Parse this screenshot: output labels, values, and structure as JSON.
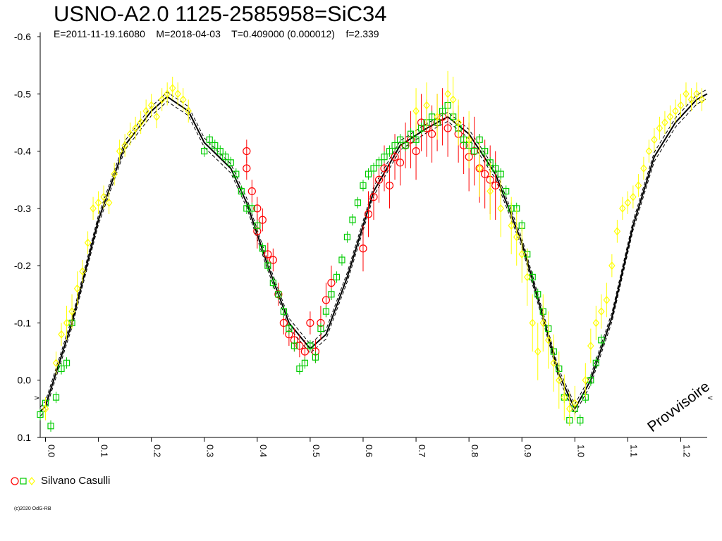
{
  "chart_data": {
    "type": "scatter",
    "title": "USNO-A2.0 1125-2585958=SiC34",
    "subtitle": "E=2011-11-19.16080    M=2018-04-03    T=0.409000 (0.000012)    f=2.339",
    "watermark": "Provvisoire",
    "copyright": "(c)2020 OdG-RB",
    "ylim": [
      -0.6,
      0.1
    ],
    "y_reversed": true,
    "xlim": [
      -0.01,
      1.25
    ],
    "y_ticks": [
      -0.6,
      -0.5,
      -0.4,
      -0.3,
      -0.2,
      -0.1,
      0.0,
      0.1
    ],
    "y_tick_labels": [
      "-0.6",
      "-0.5",
      "-0.4",
      "-0.3",
      "-0.2",
      "-0.1",
      "0.0",
      "0.1"
    ],
    "x_ticks": [
      0.0,
      0.1,
      0.2,
      0.3,
      0.4,
      0.5,
      0.6,
      0.7,
      0.8,
      0.9,
      1.0,
      1.1,
      1.2
    ],
    "x_tick_labels": [
      "0.0",
      "0.1",
      "0.2",
      "0.3",
      "0.4",
      "0.5",
      "0.6",
      "0.7",
      "0.8",
      "0.9",
      "1.0",
      "1.1",
      "1.2"
    ],
    "grid": false,
    "legend": {
      "placement": "bottom-left",
      "label": "Silvano Casulli"
    },
    "fit_curve": {
      "x": [
        -0.01,
        0.0,
        0.05,
        0.1,
        0.15,
        0.2,
        0.23,
        0.27,
        0.3,
        0.35,
        0.38,
        0.42,
        0.46,
        0.5,
        0.53,
        0.57,
        0.62,
        0.67,
        0.72,
        0.76,
        0.8,
        0.85,
        0.9,
        0.94,
        0.97,
        1.0,
        1.03,
        1.07,
        1.11,
        1.15,
        1.19,
        1.23,
        1.25
      ],
      "y": [
        0.055,
        0.045,
        -0.1,
        -0.28,
        -0.41,
        -0.47,
        -0.495,
        -0.47,
        -0.415,
        -0.37,
        -0.31,
        -0.2,
        -0.1,
        -0.055,
        -0.08,
        -0.18,
        -0.33,
        -0.41,
        -0.44,
        -0.46,
        -0.43,
        -0.36,
        -0.24,
        -0.11,
        -0.01,
        0.05,
        0.0,
        -0.11,
        -0.27,
        -0.39,
        -0.45,
        -0.49,
        -0.5
      ],
      "color": "#000000"
    },
    "series": [
      {
        "name": "",
        "marker": "circle",
        "color": "#ff0000",
        "x": [
          0.38,
          0.38,
          0.39,
          0.4,
          0.4,
          0.41,
          0.42,
          0.43,
          0.44,
          0.45,
          0.46,
          0.47,
          0.48,
          0.49,
          0.5,
          0.51,
          0.52,
          0.53,
          0.54,
          0.6,
          0.61,
          0.62,
          0.63,
          0.64,
          0.65,
          0.66,
          0.67,
          0.68,
          0.69,
          0.7,
          0.71,
          0.72,
          0.73,
          0.74,
          0.75,
          0.76,
          0.78,
          0.79,
          0.8,
          0.81,
          0.82,
          0.83,
          0.84,
          0.85
        ],
        "y": [
          -0.4,
          -0.37,
          -0.33,
          -0.3,
          -0.26,
          -0.28,
          -0.22,
          -0.21,
          -0.15,
          -0.1,
          -0.08,
          -0.07,
          -0.06,
          -0.05,
          -0.1,
          -0.05,
          -0.1,
          -0.14,
          -0.17,
          -0.23,
          -0.29,
          -0.32,
          -0.35,
          -0.37,
          -0.34,
          -0.39,
          -0.38,
          -0.41,
          -0.42,
          -0.4,
          -0.45,
          -0.44,
          -0.43,
          -0.45,
          -0.46,
          -0.44,
          -0.43,
          -0.41,
          -0.39,
          -0.4,
          -0.37,
          -0.36,
          -0.35,
          -0.34
        ],
        "err": [
          0.02,
          0.02,
          0.02,
          0.02,
          0.03,
          0.02,
          0.02,
          0.02,
          0.02,
          0.02,
          0.02,
          0.02,
          0.02,
          0.02,
          0.02,
          0.02,
          0.03,
          0.03,
          0.03,
          0.04,
          0.04,
          0.04,
          0.04,
          0.04,
          0.04,
          0.04,
          0.04,
          0.04,
          0.05,
          0.05,
          0.05,
          0.05,
          0.05,
          0.05,
          0.05,
          0.05,
          0.05,
          0.05,
          0.06,
          0.06,
          0.06,
          0.06,
          0.06,
          0.06
        ]
      },
      {
        "name": "",
        "marker": "square",
        "color": "#00cc00",
        "x": [
          -0.01,
          0.0,
          0.01,
          0.02,
          0.03,
          0.04,
          0.05,
          0.3,
          0.31,
          0.32,
          0.33,
          0.34,
          0.35,
          0.36,
          0.37,
          0.38,
          0.39,
          0.4,
          0.41,
          0.42,
          0.43,
          0.44,
          0.45,
          0.46,
          0.47,
          0.48,
          0.49,
          0.5,
          0.51,
          0.52,
          0.53,
          0.54,
          0.55,
          0.56,
          0.57,
          0.58,
          0.59,
          0.6,
          0.61,
          0.62,
          0.63,
          0.64,
          0.65,
          0.66,
          0.67,
          0.68,
          0.69,
          0.7,
          0.71,
          0.72,
          0.73,
          0.74,
          0.75,
          0.76,
          0.77,
          0.78,
          0.79,
          0.8,
          0.81,
          0.82,
          0.83,
          0.84,
          0.85,
          0.86,
          0.87,
          0.88,
          0.89,
          0.9,
          0.91,
          0.92,
          0.93,
          0.94,
          0.95,
          0.96,
          0.97,
          0.98,
          0.99,
          1.0,
          1.01,
          1.02,
          1.03,
          1.04,
          1.05
        ],
        "y": [
          0.06,
          0.04,
          0.08,
          0.03,
          -0.02,
          -0.03,
          -0.1,
          -0.4,
          -0.42,
          -0.41,
          -0.4,
          -0.39,
          -0.38,
          -0.36,
          -0.33,
          -0.3,
          -0.3,
          -0.27,
          -0.23,
          -0.2,
          -0.17,
          -0.15,
          -0.12,
          -0.09,
          -0.06,
          -0.02,
          -0.03,
          -0.06,
          -0.04,
          -0.09,
          -0.12,
          -0.15,
          -0.18,
          -0.21,
          -0.25,
          -0.28,
          -0.31,
          -0.34,
          -0.36,
          -0.37,
          -0.38,
          -0.39,
          -0.4,
          -0.41,
          -0.42,
          -0.41,
          -0.43,
          -0.42,
          -0.44,
          -0.45,
          -0.46,
          -0.45,
          -0.47,
          -0.48,
          -0.46,
          -0.44,
          -0.42,
          -0.41,
          -0.4,
          -0.42,
          -0.4,
          -0.38,
          -0.37,
          -0.36,
          -0.33,
          -0.3,
          -0.3,
          -0.27,
          -0.22,
          -0.18,
          -0.15,
          -0.12,
          -0.09,
          -0.05,
          -0.02,
          0.03,
          0.07,
          0.05,
          0.07,
          0.03,
          0.0,
          -0.03,
          -0.07
        ],
        "err": [
          0.01,
          0.01,
          0.01,
          0.01,
          0.01,
          0.01,
          0.01,
          0.01,
          0.01,
          0.01,
          0.01,
          0.01,
          0.01,
          0.01,
          0.01,
          0.01,
          0.01,
          0.01,
          0.01,
          0.01,
          0.01,
          0.01,
          0.01,
          0.01,
          0.01,
          0.01,
          0.01,
          0.01,
          0.01,
          0.01,
          0.01,
          0.01,
          0.01,
          0.01,
          0.01,
          0.01,
          0.01,
          0.01,
          0.01,
          0.01,
          0.01,
          0.01,
          0.01,
          0.01,
          0.01,
          0.01,
          0.01,
          0.01,
          0.01,
          0.01,
          0.01,
          0.01,
          0.01,
          0.01,
          0.01,
          0.01,
          0.01,
          0.01,
          0.01,
          0.01,
          0.01,
          0.01,
          0.01,
          0.01,
          0.01,
          0.01,
          0.01,
          0.01,
          0.01,
          0.01,
          0.01,
          0.01,
          0.01,
          0.01,
          0.01,
          0.01,
          0.01,
          0.01,
          0.01,
          0.01,
          0.01,
          0.01,
          0.01
        ]
      },
      {
        "name": "",
        "marker": "diamond",
        "color": "#ffff00",
        "x": [
          0.0,
          0.02,
          0.03,
          0.04,
          0.05,
          0.06,
          0.07,
          0.08,
          0.09,
          0.1,
          0.11,
          0.12,
          0.13,
          0.14,
          0.15,
          0.16,
          0.17,
          0.18,
          0.19,
          0.2,
          0.21,
          0.22,
          0.23,
          0.24,
          0.25,
          0.26,
          0.27,
          0.7,
          0.72,
          0.74,
          0.76,
          0.77,
          0.78,
          0.8,
          0.82,
          0.84,
          0.86,
          0.88,
          0.89,
          0.9,
          0.91,
          0.92,
          0.93,
          0.94,
          0.95,
          0.96,
          0.97,
          0.98,
          0.99,
          1.0,
          1.02,
          1.03,
          1.04,
          1.05,
          1.06,
          1.07,
          1.08,
          1.09,
          1.1,
          1.11,
          1.12,
          1.13,
          1.14,
          1.15,
          1.16,
          1.17,
          1.18,
          1.19,
          1.2,
          1.21,
          1.22,
          1.23,
          1.24
        ],
        "y": [
          0.05,
          -0.03,
          -0.08,
          -0.1,
          -0.12,
          -0.16,
          -0.19,
          -0.24,
          -0.3,
          -0.31,
          -0.32,
          -0.31,
          -0.36,
          -0.4,
          -0.41,
          -0.43,
          -0.44,
          -0.45,
          -0.47,
          -0.48,
          -0.46,
          -0.49,
          -0.5,
          -0.51,
          -0.5,
          -0.49,
          -0.47,
          -0.47,
          -0.48,
          -0.46,
          -0.5,
          -0.49,
          -0.45,
          -0.42,
          -0.37,
          -0.33,
          -0.3,
          -0.27,
          -0.25,
          -0.22,
          -0.18,
          -0.1,
          -0.05,
          -0.1,
          -0.07,
          -0.03,
          0.0,
          0.03,
          0.05,
          0.04,
          0.0,
          -0.06,
          -0.1,
          -0.12,
          -0.14,
          -0.2,
          -0.26,
          -0.3,
          -0.31,
          -0.32,
          -0.34,
          -0.37,
          -0.4,
          -0.42,
          -0.44,
          -0.45,
          -0.46,
          -0.47,
          -0.48,
          -0.5,
          -0.49,
          -0.5,
          -0.49
        ],
        "err": [
          0.02,
          0.02,
          0.02,
          0.03,
          0.03,
          0.03,
          0.02,
          0.02,
          0.02,
          0.02,
          0.02,
          0.02,
          0.02,
          0.02,
          0.02,
          0.02,
          0.02,
          0.02,
          0.02,
          0.02,
          0.02,
          0.02,
          0.02,
          0.02,
          0.02,
          0.02,
          0.02,
          0.04,
          0.04,
          0.04,
          0.04,
          0.04,
          0.04,
          0.05,
          0.05,
          0.05,
          0.05,
          0.05,
          0.05,
          0.05,
          0.05,
          0.05,
          0.05,
          0.05,
          0.05,
          0.05,
          0.05,
          0.04,
          0.03,
          0.03,
          0.03,
          0.03,
          0.03,
          0.03,
          0.03,
          0.02,
          0.02,
          0.02,
          0.02,
          0.02,
          0.02,
          0.02,
          0.02,
          0.02,
          0.02,
          0.02,
          0.02,
          0.02,
          0.02,
          0.02,
          0.02,
          0.02,
          0.02
        ]
      }
    ]
  },
  "legend_symbols": {
    "circle_color": "#ff0000",
    "square_color": "#00cc00",
    "diamond_color": "#ffff00"
  }
}
